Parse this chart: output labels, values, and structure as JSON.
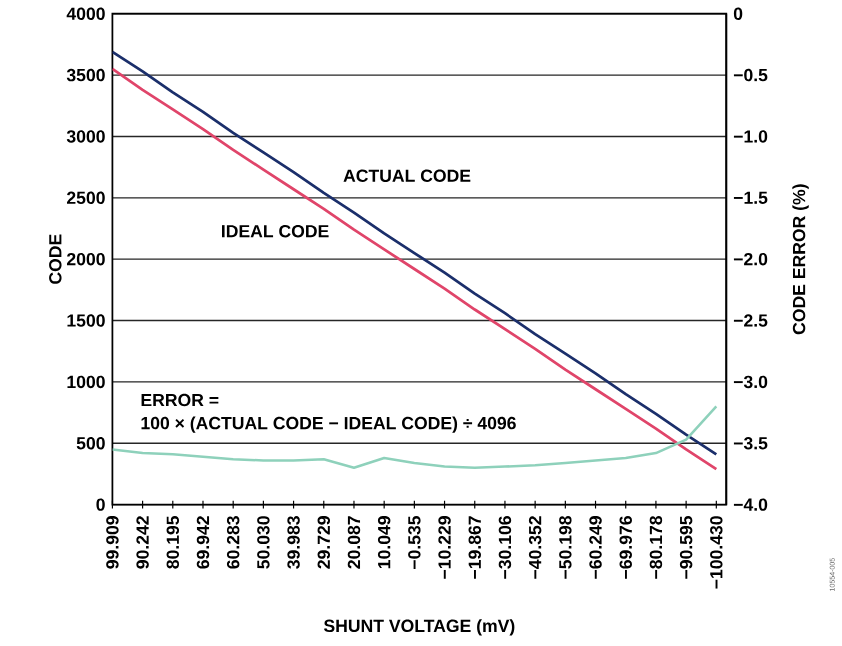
{
  "chart_data": {
    "type": "line",
    "xlabel": "SHUNT VOLTAGE (mV)",
    "ylabel": "CODE",
    "y2label": "CODE ERROR (%)",
    "categories": [
      "99.909",
      "90.242",
      "80.195",
      "69.942",
      "60.283",
      "50.030",
      "39.983",
      "29.729",
      "20.087",
      "10.049",
      "−0.535",
      "−10.229",
      "−19.867",
      "−30.106",
      "−40.352",
      "−50.198",
      "−60.249",
      "−69.976",
      "−80.178",
      "−90.595",
      "−100.430"
    ],
    "series": [
      {
        "name": "ACTUAL CODE",
        "color": "#1b2f6b",
        "values": [
          3690,
          3530,
          3360,
          3200,
          3030,
          2870,
          2710,
          2540,
          2380,
          2210,
          2050,
          1890,
          1720,
          1560,
          1390,
          1230,
          1070,
          900,
          740,
          570,
          410
        ]
      },
      {
        "name": "IDEAL CODE",
        "color": "#e0456a",
        "values": [
          3550,
          3380,
          3220,
          3060,
          2890,
          2730,
          2570,
          2410,
          2240,
          2080,
          1920,
          1760,
          1590,
          1430,
          1270,
          1100,
          940,
          780,
          620,
          450,
          290
        ]
      },
      {
        "color": "#8ed1bb",
        "axis": "y2",
        "values": [
          -3.55,
          -3.58,
          -3.59,
          -3.61,
          -3.63,
          -3.64,
          -3.64,
          -3.63,
          -3.7,
          -3.62,
          -3.66,
          -3.69,
          -3.7,
          -3.69,
          -3.68,
          -3.66,
          -3.64,
          -3.62,
          -3.58,
          -3.47,
          -3.2
        ]
      }
    ],
    "ylim": [
      0,
      4000
    ],
    "yticks": [
      0,
      500,
      1000,
      1500,
      2000,
      2500,
      3000,
      3500,
      4000
    ],
    "y2lim": [
      -4,
      0
    ],
    "y2ticks": [
      {
        "value": -4,
        "label": "−4.0"
      },
      {
        "value": -3.5,
        "label": "−3.5"
      },
      {
        "value": -3,
        "label": "−3.0"
      },
      {
        "value": -2.5,
        "label": "−2.5"
      },
      {
        "value": -2,
        "label": "−2.0"
      },
      {
        "value": -1.5,
        "label": "−1.5"
      },
      {
        "value": -1,
        "label": "−1.0"
      },
      {
        "value": -0.5,
        "label": "−0.5"
      },
      0
    ],
    "grid": "y",
    "annotations": [
      "ERROR =",
      "100 × (ACTUAL CODE − IDEAL CODE) ÷ 4096",
      "10554-005"
    ]
  }
}
